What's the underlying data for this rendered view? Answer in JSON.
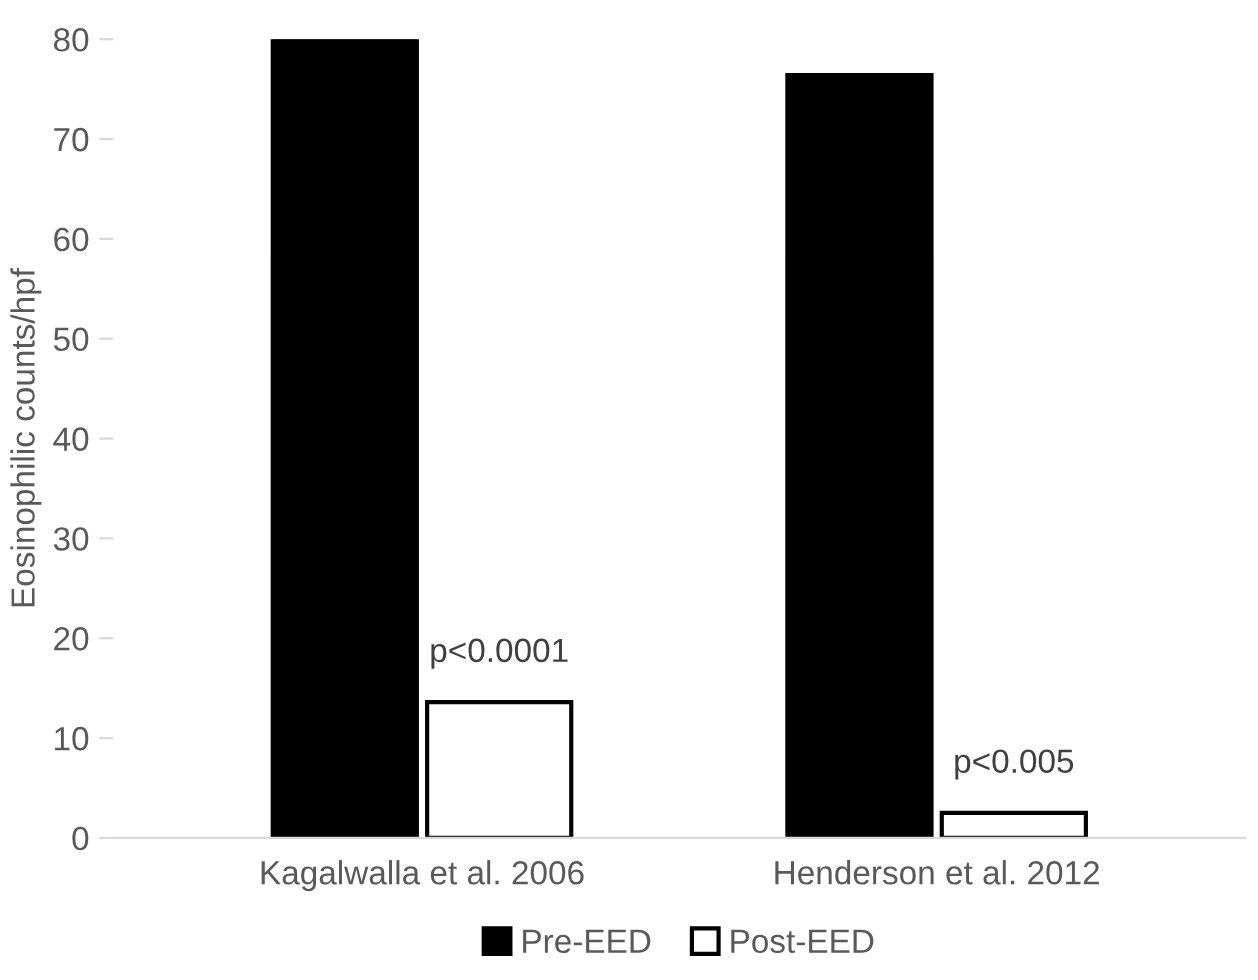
{
  "chart_data": {
    "type": "bar",
    "ylabel": "Eosinophilic counts/hpf",
    "categories": [
      "Kagalwalla et al. 2006",
      "Henderson et al. 2012"
    ],
    "series": [
      {
        "name": "Pre-EED",
        "color": "#000000",
        "values": [
          80,
          76.4
        ]
      },
      {
        "name": "Post-EED",
        "color": "#ffffff",
        "values": [
          13.6,
          2.5
        ]
      }
    ],
    "annotations": [
      {
        "text": "p<0.0001",
        "x": "Kagalwalla et al. 2006",
        "y": 13.6
      },
      {
        "text": "p<0.005",
        "x": "Henderson et al. 2012",
        "y": 2.5
      }
    ],
    "ylim": [
      0,
      80
    ],
    "yticks": [
      0,
      10,
      20,
      30,
      40,
      50,
      60,
      70,
      80
    ],
    "grid": false,
    "legend": "bottom"
  }
}
